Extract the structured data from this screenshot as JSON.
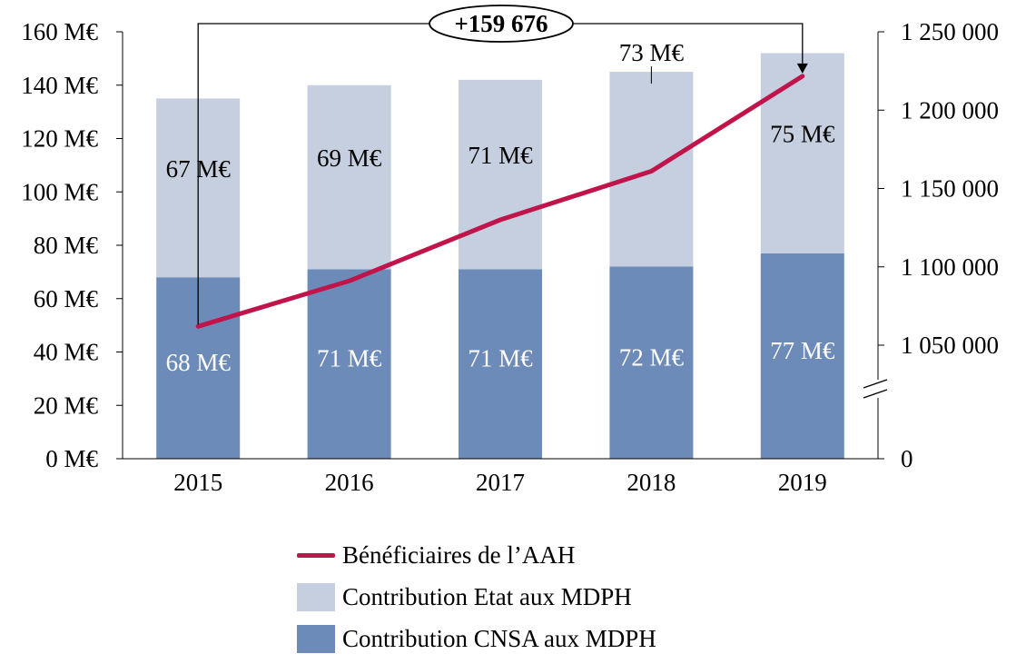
{
  "chart_data": {
    "type": "bar",
    "categories": [
      "2015",
      "2016",
      "2017",
      "2018",
      "2019"
    ],
    "series": [
      {
        "name": "Contribution CNSA aux MDPH",
        "kind": "stacked-bar",
        "axis": "left",
        "values": [
          68,
          71,
          71,
          72,
          77
        ],
        "labels": [
          "68  M€",
          "71  M€",
          "71  M€",
          "72  M€",
          "77  M€"
        ],
        "color": "#6d8bb8"
      },
      {
        "name": "Contribution Etat aux MDPH",
        "kind": "stacked-bar",
        "axis": "left",
        "values": [
          67,
          69,
          71,
          73,
          75
        ],
        "labels": [
          "67  M€",
          "69  M€",
          "71  M€",
          "73  M€",
          "75  M€"
        ],
        "color": "#c5cfe0"
      },
      {
        "name": "Bénéficiaires de l’AAH",
        "kind": "line",
        "axis": "right",
        "values": [
          1062000,
          1091000,
          1130000,
          1161000,
          1221676
        ],
        "color": "#c0144a"
      }
    ],
    "left_axis": {
      "ylim": [
        0,
        160
      ],
      "ticks": [
        "0 M€",
        "20 M€",
        "40 M€",
        "60 M€",
        "80 M€",
        "100 M€",
        "120 M€",
        "140 M€",
        "160 M€"
      ]
    },
    "right_axis": {
      "ylim": [
        1000000,
        1250000
      ],
      "broken": true,
      "ticks": [
        "0",
        "1 050 000",
        "1 100 000",
        "1 150 000",
        "1 200 000",
        "1 250 000"
      ]
    },
    "annotation": {
      "text": "+159 676",
      "from": "2015",
      "to": "2019"
    },
    "legend_position": "bottom-center",
    "grid": false
  },
  "legend": [
    {
      "label": "Bénéficiaires de l’AAH",
      "type": "line",
      "color": "#c0144a"
    },
    {
      "label": "Contribution Etat aux MDPH",
      "type": "box",
      "color": "#c5cfe0"
    },
    {
      "label": "Contribution CNSA aux MDPH",
      "type": "box",
      "color": "#6d8bb8"
    }
  ]
}
